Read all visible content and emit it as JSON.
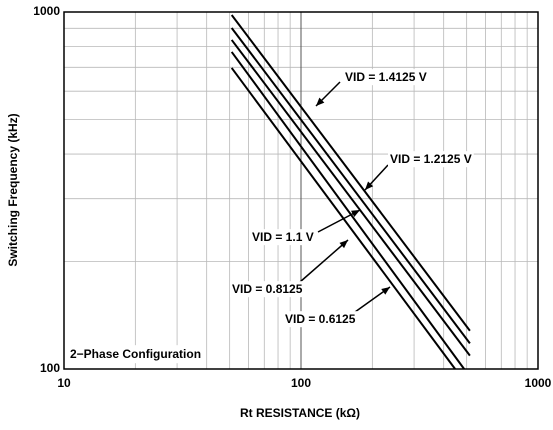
{
  "chart_data": {
    "type": "line",
    "x_label": "Rt RESISTANCE (kΩ)",
    "y_label": "Switching Frequency (kHz)",
    "xlim": [
      10,
      1000
    ],
    "ylim": [
      100,
      1000
    ],
    "xticks": [
      10,
      100,
      1000
    ],
    "yticks": [
      100,
      1000
    ],
    "x_log": true,
    "y_log": true,
    "grid": true,
    "note": "2−Phase Configuration",
    "series": [
      {
        "name": "VID = 1.4125 V",
        "color": "#000000",
        "x": [
          51,
          516
        ],
        "values": [
          981,
          128
        ]
      },
      {
        "name": "VID = 1.2125 V",
        "color": "#000000",
        "x": [
          51,
          516
        ],
        "values": [
          902,
          118
        ]
      },
      {
        "name": "VID = 1.1 V",
        "color": "#000000",
        "x": [
          51,
          516
        ],
        "values": [
          835,
          109
        ]
      },
      {
        "name": "VID = 0.8125",
        "color": "#000000",
        "x": [
          51,
          488
        ],
        "values": [
          773,
          100
        ]
      },
      {
        "name": "VID = 0.6125",
        "color": "#000000",
        "x": [
          51,
          447
        ],
        "values": [
          697,
          100
        ]
      }
    ]
  }
}
